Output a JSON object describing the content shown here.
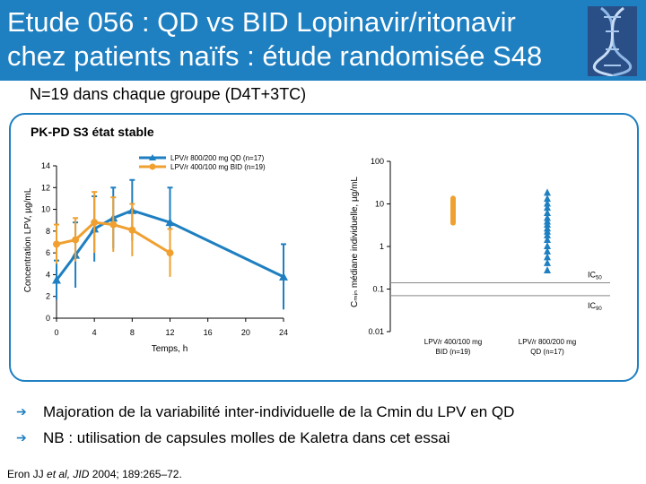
{
  "slide": {
    "title_line1": "Etude 056 : QD vs BID Lopinavir/ritonavir",
    "title_line2": "chez patients naïfs : étude randomisée S48",
    "subtitle": "N=19 dans chaque groupe (D4T+3TC)",
    "panel_title": "PK-PD S3 état stable",
    "bullets": [
      "Majoration de la variabilité inter-individuelle de la Cmin du LPV en QD",
      "NB : utilisation de capsules molles de Kaletra dans cet essai"
    ],
    "reference_prefix": "Eron JJ ",
    "reference_italic": "et al, JID",
    "reference_suffix": " 2004; 189:265–72.",
    "colors": {
      "title_bg": "#1e7fc1",
      "qd": "#1e7fc1",
      "bid": "#f0a030"
    }
  },
  "chart_data": [
    {
      "type": "line",
      "title": "",
      "xlabel": "Temps, h",
      "ylabel": "Concentration LPV, µg/mL",
      "xlim": [
        0,
        24
      ],
      "ylim": [
        0,
        14
      ],
      "x_ticks": [
        "0",
        "4",
        "8",
        "12",
        "16",
        "20",
        "24"
      ],
      "y_ticks": [
        "0",
        "2",
        "4",
        "6",
        "8",
        "10",
        "12",
        "14"
      ],
      "series": [
        {
          "name": "LPV/r 800/200 mg QD (n=17)",
          "color": "#1e7fc1",
          "marker": "triangle",
          "x": [
            0,
            2,
            4,
            6,
            8,
            12,
            24
          ],
          "y": [
            3.5,
            5.8,
            8.2,
            9.2,
            9.9,
            8.8,
            3.8
          ],
          "err": [
            1.8,
            3.0,
            3.0,
            2.8,
            2.8,
            3.2,
            3.0
          ]
        },
        {
          "name": "LPV/r 400/100 mg BID (n=19)",
          "color": "#f0a030",
          "marker": "circle",
          "x": [
            0,
            2,
            4,
            6,
            8,
            12
          ],
          "y": [
            6.8,
            7.2,
            8.8,
            8.6,
            8.1,
            6.0
          ],
          "err": [
            1.8,
            2.0,
            2.8,
            2.5,
            2.4,
            2.2
          ]
        }
      ]
    },
    {
      "type": "scatter",
      "ylabel": "Cₘᵢₙ médiane individuelle, µg/mL",
      "yscale": "log",
      "ylim": [
        0.01,
        100
      ],
      "y_ticks": [
        "0.01",
        "0.1",
        "1",
        "10",
        "100"
      ],
      "categories": [
        "LPV/r 400/100 mg BID (n=19)",
        "LPV/r 800/200 mg QD (n=17)"
      ],
      "ic_lines": [
        {
          "label": "IC",
          "sub": "50",
          "value": 0.14
        },
        {
          "label": "IC",
          "sub": "90",
          "value": 0.07
        }
      ],
      "series": [
        {
          "name": "BID",
          "color": "#f0a030",
          "values": [
            13.5,
            12.5,
            11.8,
            11.0,
            10.2,
            9.6,
            9.0,
            8.4,
            7.8,
            7.3,
            6.8,
            6.3,
            5.8,
            5.4,
            5.0,
            4.6,
            4.2,
            3.9,
            3.6
          ]
        },
        {
          "name": "QD",
          "color": "#1e7fc1",
          "values": [
            18.0,
            13.0,
            10.0,
            8.0,
            6.0,
            4.6,
            3.8,
            3.2,
            2.6,
            2.2,
            1.8,
            1.4,
            1.0,
            0.75,
            0.55,
            0.4,
            0.27
          ]
        }
      ]
    }
  ]
}
